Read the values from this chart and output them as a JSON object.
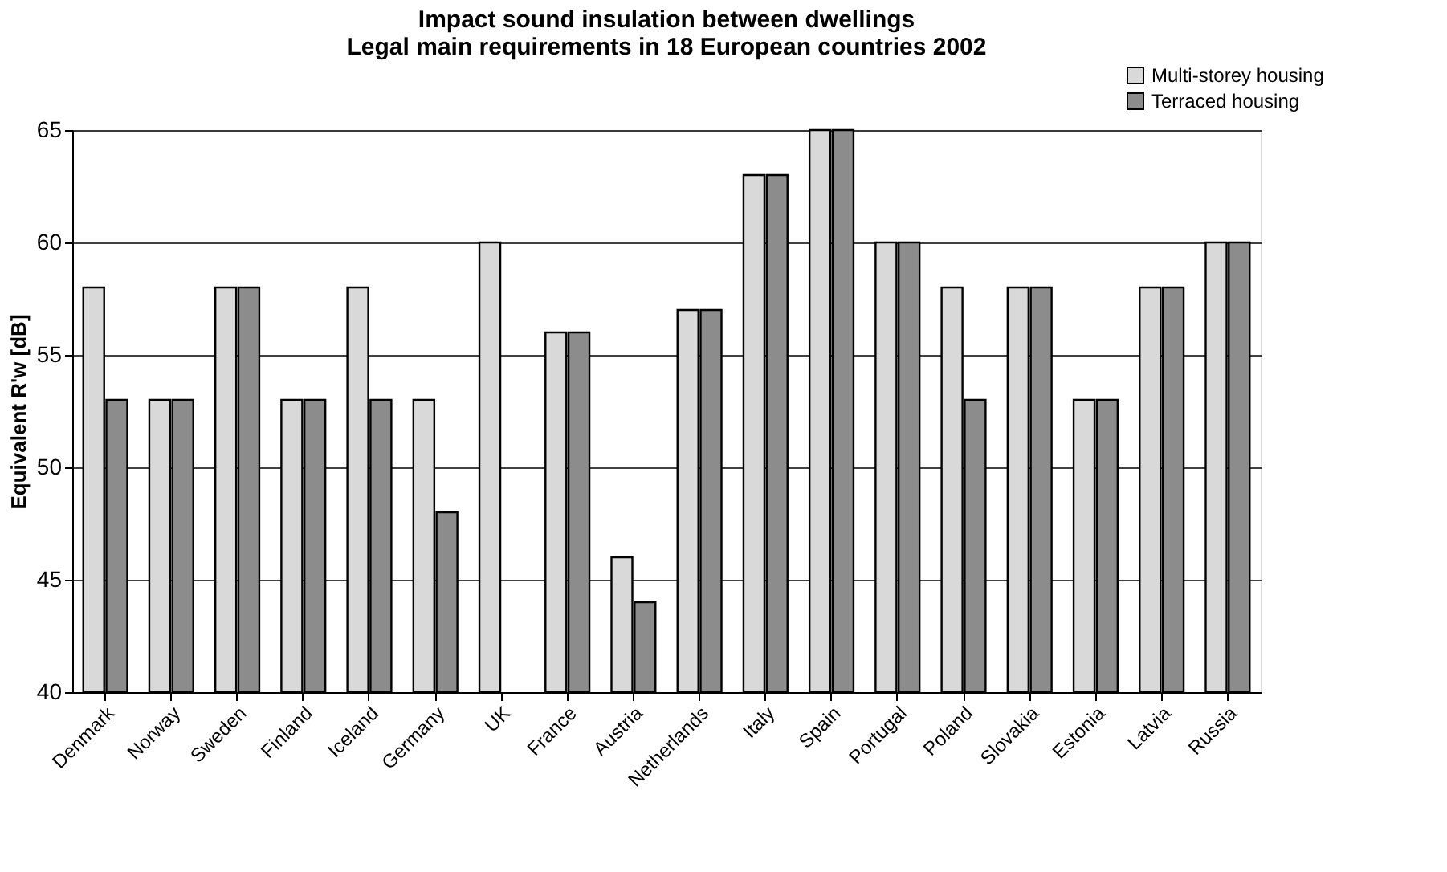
{
  "chart_data": {
    "type": "bar",
    "title": [
      "Impact sound insulation between dwellings",
      "Legal main requirements in 18 European countries 2002"
    ],
    "ylabel": "Equivalent R'w [dB]",
    "categories": [
      "Denmark",
      "Norway",
      "Sweden",
      "Finland",
      "Iceland",
      "Germany",
      "UK",
      "France",
      "Austria",
      "Netherlands",
      "Italy",
      "Spain",
      "Portugal",
      "Poland",
      "Slovakia",
      "Estonia",
      "Latvia",
      "Russia"
    ],
    "series": [
      {
        "name": "Multi-storey housing",
        "color": "#d9d9d9",
        "values": [
          58,
          53,
          58,
          53,
          58,
          53,
          60,
          56,
          46,
          57,
          63,
          65,
          60,
          58,
          58,
          53,
          58,
          60
        ]
      },
      {
        "name": "Terraced housing",
        "color": "#8c8c8c",
        "values": [
          53,
          53,
          58,
          53,
          53,
          48,
          null,
          56,
          44,
          57,
          63,
          65,
          60,
          53,
          58,
          53,
          58,
          60
        ]
      }
    ],
    "ylim": [
      40,
      65
    ],
    "yticks": [
      40,
      45,
      50,
      55,
      60,
      65
    ],
    "grid": "y",
    "legend": "top right"
  }
}
